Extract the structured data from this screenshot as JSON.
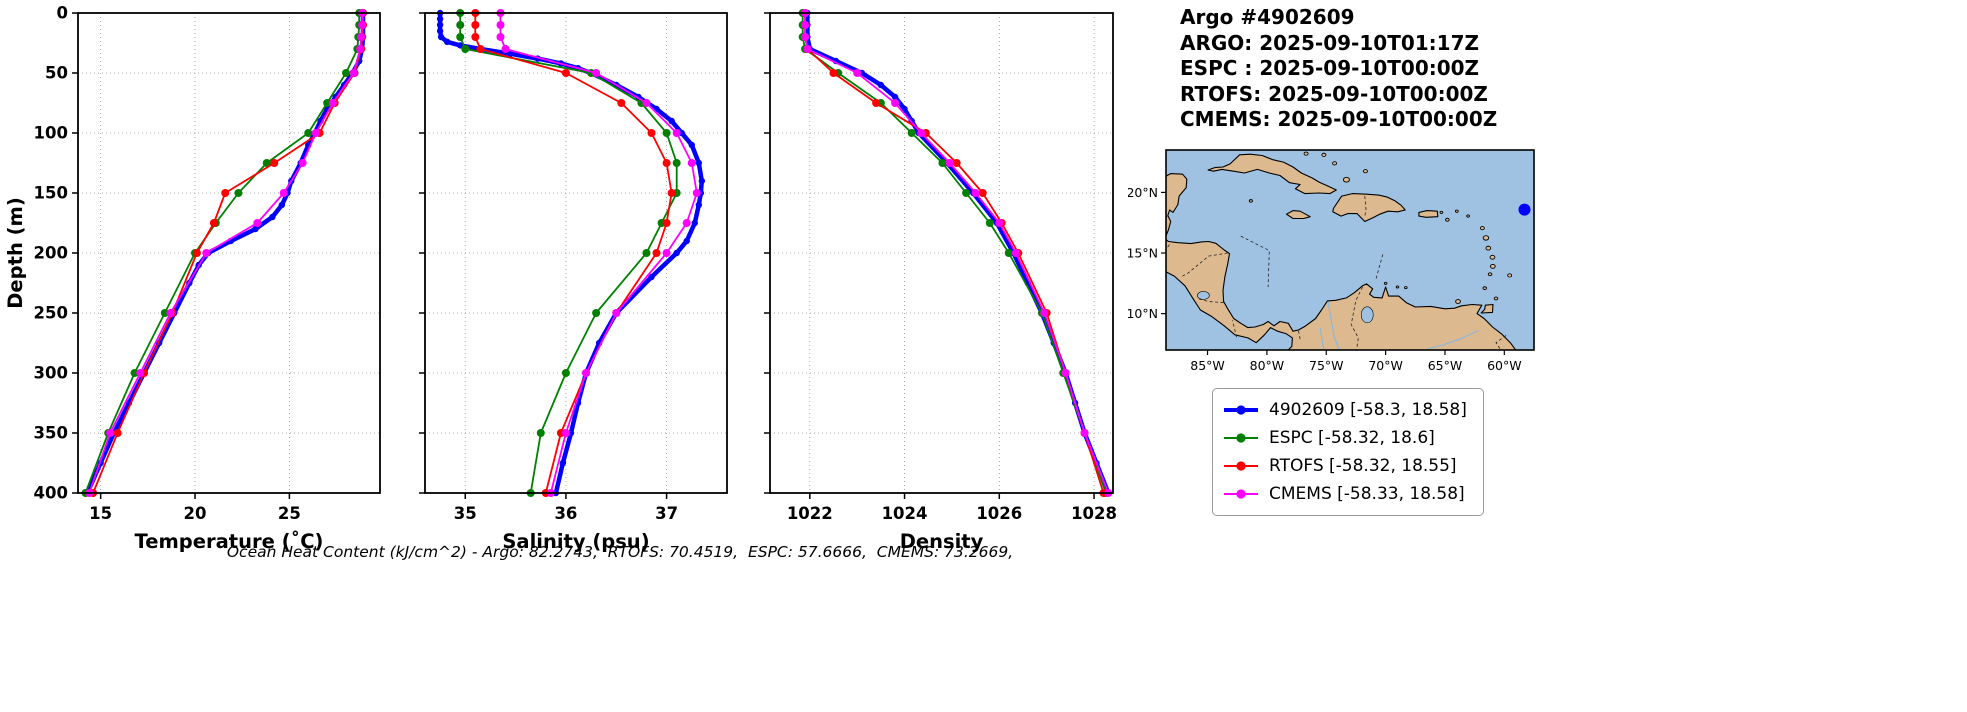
{
  "header": {
    "title": "Argo #4902609",
    "lines": [
      "ARGO: 2025-09-10T01:17Z",
      "ESPC : 2025-09-10T00:00Z",
      "RTOFS: 2025-09-10T00:00Z",
      "CMEMS: 2025-09-10T00:00Z"
    ]
  },
  "footer": {
    "text": "Ocean Heat Content (kJ/cm^2) - Argo: 82.2743,  RTOFS: 70.4519,  ESPC: 57.6666,  CMEMS: 73.2669,"
  },
  "legend": {
    "items": [
      {
        "label": "4902609 [-58.3, 18.58]",
        "color": "#0000ff",
        "lw": 4
      },
      {
        "label": "ESPC [-58.32, 18.6]",
        "color": "#008000",
        "lw": 2
      },
      {
        "label": "RTOFS [-58.32, 18.55]",
        "color": "#ff0000",
        "lw": 2
      },
      {
        "label": "CMEMS [-58.33, 18.58]",
        "color": "#ff00ff",
        "lw": 2
      }
    ]
  },
  "chart_data": [
    {
      "type": "line",
      "key": "temperature",
      "title": "",
      "xlabel": "Temperature (˚C)",
      "ylabel": "Depth (m)",
      "xlim": [
        13.8,
        29.8
      ],
      "ylim": [
        0,
        400
      ],
      "xticks": [
        15,
        20,
        25
      ],
      "yticks": [
        0,
        50,
        100,
        150,
        200,
        250,
        300,
        350,
        400
      ],
      "grid": true,
      "series": [
        {
          "name": "4902609",
          "color": "#0000ff",
          "lw": 4.5,
          "ms": 3.2,
          "depths": [
            0,
            10,
            20,
            30,
            40,
            50,
            60,
            70,
            80,
            90,
            100,
            110,
            125,
            140,
            150,
            160,
            170,
            180,
            190,
            200,
            210,
            225,
            250,
            275,
            300,
            325,
            350,
            375,
            400
          ],
          "values": [
            28.9,
            28.9,
            28.9,
            28.85,
            28.7,
            28.35,
            27.9,
            27.45,
            27.0,
            26.65,
            26.35,
            26.0,
            25.6,
            25.1,
            24.9,
            24.6,
            24.1,
            23.2,
            21.9,
            20.7,
            20.2,
            19.7,
            18.9,
            18.1,
            17.3,
            16.5,
            15.7,
            15.0,
            14.3
          ]
        },
        {
          "name": "ESPC",
          "color": "#008000",
          "lw": 1.8,
          "ms": 4,
          "depths": [
            0,
            10,
            20,
            30,
            50,
            75,
            100,
            125,
            150,
            175,
            200,
            250,
            300,
            350,
            400
          ],
          "values": [
            28.7,
            28.7,
            28.65,
            28.6,
            28.0,
            27.0,
            26.0,
            23.8,
            22.3,
            21.1,
            20.0,
            18.4,
            16.8,
            15.4,
            14.2
          ]
        },
        {
          "name": "RTOFS",
          "color": "#ff0000",
          "lw": 1.8,
          "ms": 4,
          "depths": [
            0,
            10,
            20,
            30,
            50,
            75,
            100,
            125,
            150,
            175,
            200,
            250,
            300,
            350,
            400
          ],
          "values": [
            28.9,
            28.9,
            28.85,
            28.8,
            28.45,
            27.4,
            26.6,
            24.2,
            21.6,
            21.0,
            20.1,
            18.8,
            17.3,
            15.9,
            14.6
          ]
        },
        {
          "name": "CMEMS",
          "color": "#ff00ff",
          "lw": 1.8,
          "ms": 4,
          "depths": [
            0,
            10,
            20,
            30,
            50,
            75,
            100,
            125,
            150,
            175,
            200,
            250,
            300,
            350,
            400
          ],
          "values": [
            28.85,
            28.85,
            28.8,
            28.75,
            28.4,
            27.3,
            26.4,
            25.7,
            24.7,
            23.3,
            20.6,
            18.7,
            17.1,
            15.5,
            14.4
          ]
        }
      ]
    },
    {
      "type": "line",
      "key": "salinity",
      "title": "",
      "xlabel": "Salinity (psu)",
      "ylabel": "",
      "xlim": [
        34.6,
        37.6
      ],
      "ylim": [
        0,
        400
      ],
      "xticks": [
        35,
        36,
        37
      ],
      "yticks": [
        0,
        50,
        100,
        150,
        200,
        250,
        300,
        350,
        400
      ],
      "grid": true,
      "series": [
        {
          "name": "4902609",
          "color": "#0000ff",
          "lw": 4.5,
          "ms": 3.2,
          "depths": [
            0,
            5,
            10,
            15,
            20,
            24,
            27,
            30,
            34,
            38,
            42,
            46,
            50,
            60,
            70,
            80,
            90,
            100,
            110,
            125,
            140,
            150,
            160,
            175,
            190,
            200,
            220,
            250,
            275,
            300,
            325,
            350,
            375,
            400
          ],
          "values": [
            34.75,
            34.75,
            34.75,
            34.75,
            34.76,
            34.82,
            34.95,
            35.15,
            35.45,
            35.72,
            35.95,
            36.12,
            36.25,
            36.5,
            36.72,
            36.9,
            37.05,
            37.15,
            37.25,
            37.32,
            37.35,
            37.34,
            37.32,
            37.28,
            37.2,
            37.1,
            36.85,
            36.5,
            36.33,
            36.2,
            36.12,
            36.05,
            35.97,
            35.9
          ]
        },
        {
          "name": "ESPC",
          "color": "#008000",
          "lw": 1.8,
          "ms": 4,
          "depths": [
            0,
            10,
            20,
            30,
            50,
            75,
            100,
            125,
            150,
            175,
            200,
            250,
            300,
            350,
            400
          ],
          "values": [
            34.95,
            34.95,
            34.95,
            35.0,
            36.25,
            36.75,
            37.0,
            37.1,
            37.1,
            36.95,
            36.8,
            36.3,
            36.0,
            35.75,
            35.65
          ]
        },
        {
          "name": "RTOFS",
          "color": "#ff0000",
          "lw": 1.8,
          "ms": 4,
          "depths": [
            0,
            10,
            20,
            30,
            50,
            75,
            100,
            125,
            150,
            175,
            200,
            250,
            300,
            350,
            400
          ],
          "values": [
            35.1,
            35.1,
            35.1,
            35.15,
            36.0,
            36.55,
            36.85,
            37.0,
            37.05,
            37.0,
            36.9,
            36.5,
            36.2,
            35.95,
            35.8
          ]
        },
        {
          "name": "CMEMS",
          "color": "#ff00ff",
          "lw": 1.8,
          "ms": 4,
          "depths": [
            0,
            10,
            20,
            30,
            50,
            75,
            100,
            125,
            150,
            175,
            200,
            250,
            300,
            350,
            400
          ],
          "values": [
            35.35,
            35.35,
            35.35,
            35.4,
            36.3,
            36.8,
            37.1,
            37.25,
            37.3,
            37.2,
            37.0,
            36.5,
            36.2,
            36.0,
            35.85
          ]
        }
      ]
    },
    {
      "type": "line",
      "key": "density",
      "title": "",
      "xlabel": "Density",
      "ylabel": "",
      "xlim": [
        1021.16,
        1028.4
      ],
      "ylim": [
        0,
        400
      ],
      "xticks": [
        1022,
        1024,
        1026,
        1028
      ],
      "yticks": [
        0,
        50,
        100,
        150,
        200,
        250,
        300,
        350,
        400
      ],
      "grid": true,
      "series": [
        {
          "name": "4902609",
          "color": "#0000ff",
          "lw": 4.5,
          "ms": 3.2,
          "depths": [
            0,
            10,
            20,
            30,
            40,
            50,
            60,
            70,
            80,
            90,
            100,
            125,
            150,
            175,
            200,
            225,
            250,
            275,
            300,
            325,
            350,
            375,
            400
          ],
          "values": [
            1021.95,
            1021.95,
            1021.95,
            1022.0,
            1022.55,
            1023.1,
            1023.5,
            1023.8,
            1024.0,
            1024.15,
            1024.3,
            1024.9,
            1025.45,
            1025.95,
            1026.3,
            1026.6,
            1026.9,
            1027.15,
            1027.4,
            1027.6,
            1027.8,
            1028.05,
            1028.3
          ]
        },
        {
          "name": "ESPC",
          "color": "#008000",
          "lw": 1.8,
          "ms": 4,
          "depths": [
            0,
            10,
            20,
            30,
            50,
            75,
            100,
            125,
            150,
            175,
            200,
            250,
            300,
            350,
            400
          ],
          "values": [
            1021.85,
            1021.85,
            1021.85,
            1021.9,
            1022.6,
            1023.5,
            1024.15,
            1024.8,
            1025.3,
            1025.8,
            1026.2,
            1026.9,
            1027.35,
            1027.8,
            1028.25
          ]
        },
        {
          "name": "RTOFS",
          "color": "#ff0000",
          "lw": 1.8,
          "ms": 4,
          "depths": [
            0,
            10,
            20,
            30,
            50,
            75,
            100,
            125,
            150,
            175,
            200,
            250,
            300,
            350,
            400
          ],
          "values": [
            1021.9,
            1021.9,
            1021.9,
            1021.95,
            1022.5,
            1023.4,
            1024.45,
            1025.1,
            1025.65,
            1026.05,
            1026.4,
            1027.0,
            1027.4,
            1027.8,
            1028.2
          ]
        },
        {
          "name": "CMEMS",
          "color": "#ff00ff",
          "lw": 1.8,
          "ms": 4,
          "depths": [
            0,
            10,
            20,
            30,
            50,
            75,
            100,
            125,
            150,
            175,
            200,
            250,
            300,
            350,
            400
          ],
          "values": [
            1021.9,
            1021.9,
            1021.9,
            1021.95,
            1023.0,
            1023.8,
            1024.35,
            1024.95,
            1025.5,
            1026.0,
            1026.35,
            1026.95,
            1027.4,
            1027.8,
            1028.3
          ]
        }
      ]
    }
  ],
  "map": {
    "extent": {
      "lon_min": -88.5,
      "lon_max": -57.5,
      "lat_min": 7.0,
      "lat_max": 23.5
    },
    "lon_ticks": [
      {
        "value": -85,
        "label": "85°W"
      },
      {
        "value": -80,
        "label": "80°W"
      },
      {
        "value": -75,
        "label": "75°W"
      },
      {
        "value": -70,
        "label": "70°W"
      },
      {
        "value": -65,
        "label": "65°W"
      },
      {
        "value": -60,
        "label": "60°W"
      }
    ],
    "lat_ticks": [
      {
        "value": 20,
        "label": "20°N"
      },
      {
        "value": 15,
        "label": "15°N"
      },
      {
        "value": 10,
        "label": "10°N"
      }
    ],
    "marker": {
      "lon": -58.3,
      "lat": 18.58,
      "color": "#0000ff"
    },
    "colors": {
      "ocean": "#9fc2e2",
      "land": "#ddb98f",
      "coast": "#000000",
      "river": "#8fb6da"
    }
  }
}
